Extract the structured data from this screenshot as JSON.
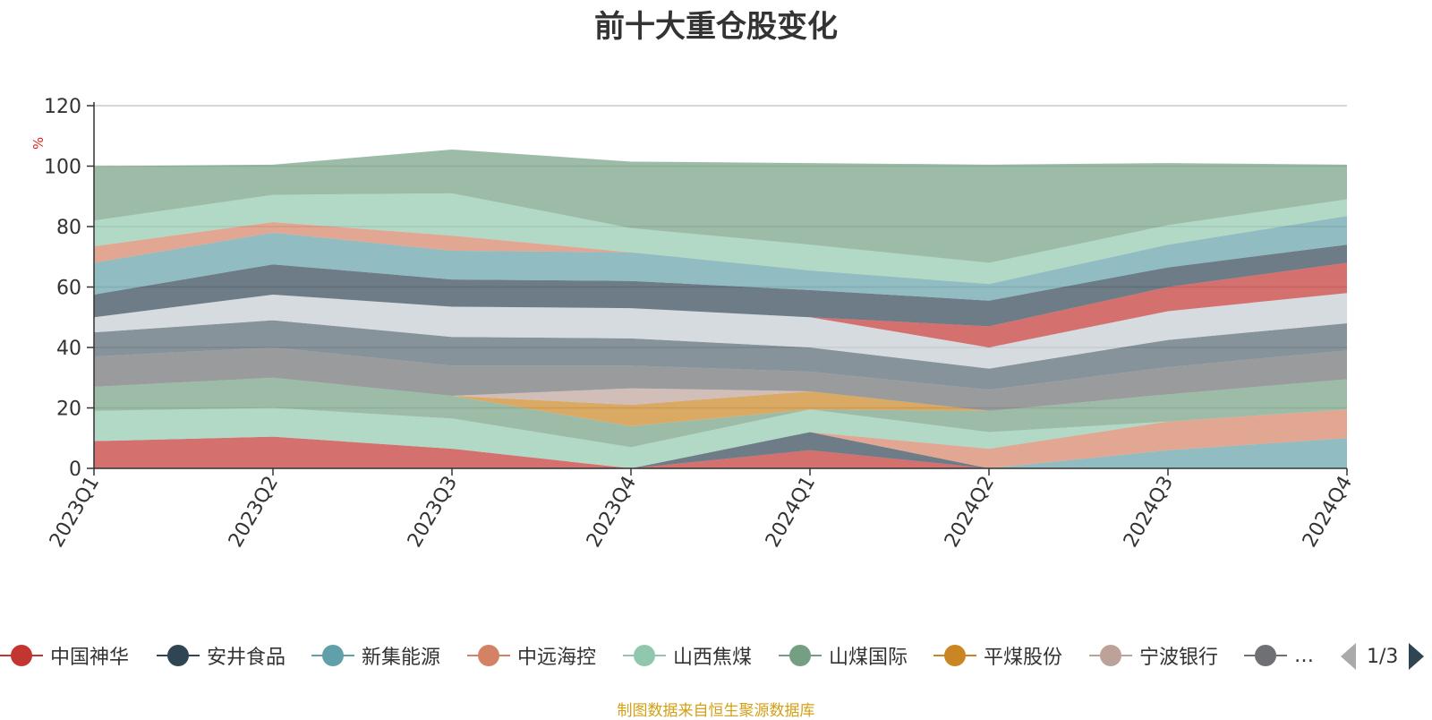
{
  "title": "前十大重仓股变化",
  "source_note": "制图数据来自恒生聚源数据库",
  "legend": {
    "items": [
      {
        "label": "中国神华",
        "color": "#c23531"
      },
      {
        "label": "安井食品",
        "color": "#2f4554"
      },
      {
        "label": "新集能源",
        "color": "#61a0a8"
      },
      {
        "label": "中远海控",
        "color": "#d48265"
      },
      {
        "label": "山西焦煤",
        "color": "#91c7ae"
      },
      {
        "label": "山煤国际",
        "color": "#749f83"
      },
      {
        "label": "平煤股份",
        "color": "#ca8622"
      },
      {
        "label": "宁波银行",
        "color": "#bda29a"
      },
      {
        "label": "…",
        "color": "#6e7074"
      }
    ],
    "pager": "1/3"
  },
  "chart_data": {
    "type": "area",
    "stacked": true,
    "title": "前十大重仓股变化",
    "ylabel": "%",
    "ylim": [
      0,
      120
    ],
    "yticks": [
      0,
      20,
      40,
      60,
      80,
      100,
      120
    ],
    "grid": true,
    "legend_position": "bottom",
    "x": [
      "2023Q1",
      "2023Q2",
      "2023Q3",
      "2023Q4",
      "2024Q1",
      "2024Q2",
      "2024Q3",
      "2024Q4"
    ],
    "series": [
      {
        "name": "中国神华",
        "color": "#c23531",
        "values": [
          9,
          10.5,
          6.5,
          0,
          6,
          0,
          0,
          0
        ]
      },
      {
        "name": "安井食品",
        "color": "#2f4554",
        "values": [
          0,
          0,
          0,
          0,
          6,
          0,
          0,
          0
        ]
      },
      {
        "name": "新集能源",
        "color": "#61a0a8",
        "values": [
          0,
          0,
          0,
          0,
          0,
          0,
          6,
          10
        ]
      },
      {
        "name": "中远海控",
        "color": "#d48265",
        "values": [
          0,
          0,
          0,
          0,
          0,
          6.5,
          9.5,
          9.5
        ]
      },
      {
        "name": "山西焦煤",
        "color": "#91c7ae",
        "values": [
          10,
          9.5,
          10,
          7,
          7.5,
          5.5,
          0,
          0
        ]
      },
      {
        "name": "山煤国际",
        "color": "#749f83",
        "values": [
          8,
          10,
          7.5,
          7,
          0,
          7,
          9,
          10
        ]
      },
      {
        "name": "平煤股份",
        "color": "#ca8622",
        "values": [
          0,
          0,
          0,
          7,
          6,
          0,
          0,
          0
        ]
      },
      {
        "name": "宁波银行",
        "color": "#bda29a",
        "values": [
          0,
          0,
          0,
          5.5,
          0,
          0,
          0,
          0
        ]
      },
      {
        "color": "#6e7074",
        "values": [
          10,
          10,
          10,
          7.5,
          6.5,
          7,
          9,
          9.5
        ]
      },
      {
        "color": "#546570",
        "values": [
          8,
          9,
          9.5,
          9,
          8,
          7,
          9,
          9
        ]
      },
      {
        "color": "#c4ccd3",
        "values": [
          5,
          8.5,
          10,
          10,
          10,
          7,
          9.5,
          10
        ]
      },
      {
        "color": "#c23531",
        "values": [
          0,
          0,
          0,
          0,
          0,
          7,
          8,
          10
        ]
      },
      {
        "color": "#2f4554",
        "values": [
          7.5,
          10,
          9,
          9,
          9,
          8.5,
          6.5,
          6
        ]
      },
      {
        "color": "#61a0a8",
        "values": [
          10.5,
          10.5,
          9.5,
          9.5,
          6.5,
          5.5,
          7.5,
          9.5
        ]
      },
      {
        "color": "#d48265",
        "values": [
          5.5,
          3.5,
          5,
          0,
          0,
          0,
          0,
          0
        ]
      },
      {
        "color": "#91c7ae",
        "values": [
          8.5,
          9,
          14,
          8,
          8.5,
          7,
          6.5,
          5.5
        ]
      },
      {
        "color": "#749f83",
        "values": [
          18,
          10,
          14.5,
          22,
          27,
          32.5,
          20.5,
          11.5
        ]
      }
    ]
  }
}
